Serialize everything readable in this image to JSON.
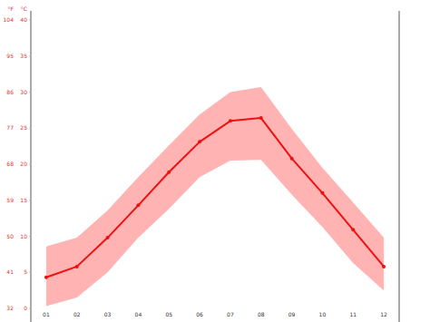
{
  "chart_data": {
    "type": "line",
    "y_label": "°C",
    "y2_label": "°F",
    "categories": [
      "01",
      "02",
      "03",
      "04",
      "05",
      "06",
      "07",
      "08",
      "09",
      "10",
      "11",
      "12"
    ],
    "series": [
      {
        "values": [
          4.3,
          5.8,
          9.8,
          14.3,
          18.9,
          23.1,
          26.0,
          26.4,
          20.8,
          16.0,
          10.9,
          5.8
        ],
        "color": "#ee1111",
        "marker": "circle"
      }
    ],
    "band": {
      "low": [
        0.3,
        1.5,
        5.0,
        9.8,
        13.8,
        18.2,
        20.5,
        20.6,
        15.8,
        11.3,
        6.3,
        2.5
      ],
      "high": [
        8.6,
        9.8,
        13.6,
        18.2,
        22.6,
        26.9,
        30.0,
        30.7,
        24.9,
        19.5,
        14.7,
        9.8
      ],
      "color": "#ffb3b3"
    },
    "ylim": [
      0,
      40
    ],
    "yticks": [
      0,
      5,
      10,
      15,
      20,
      25,
      30,
      35,
      40
    ],
    "y2lim": [
      32,
      104
    ],
    "y2ticks": [
      32,
      41,
      50,
      59,
      68,
      77,
      86,
      95,
      104
    ],
    "grid": false
  }
}
